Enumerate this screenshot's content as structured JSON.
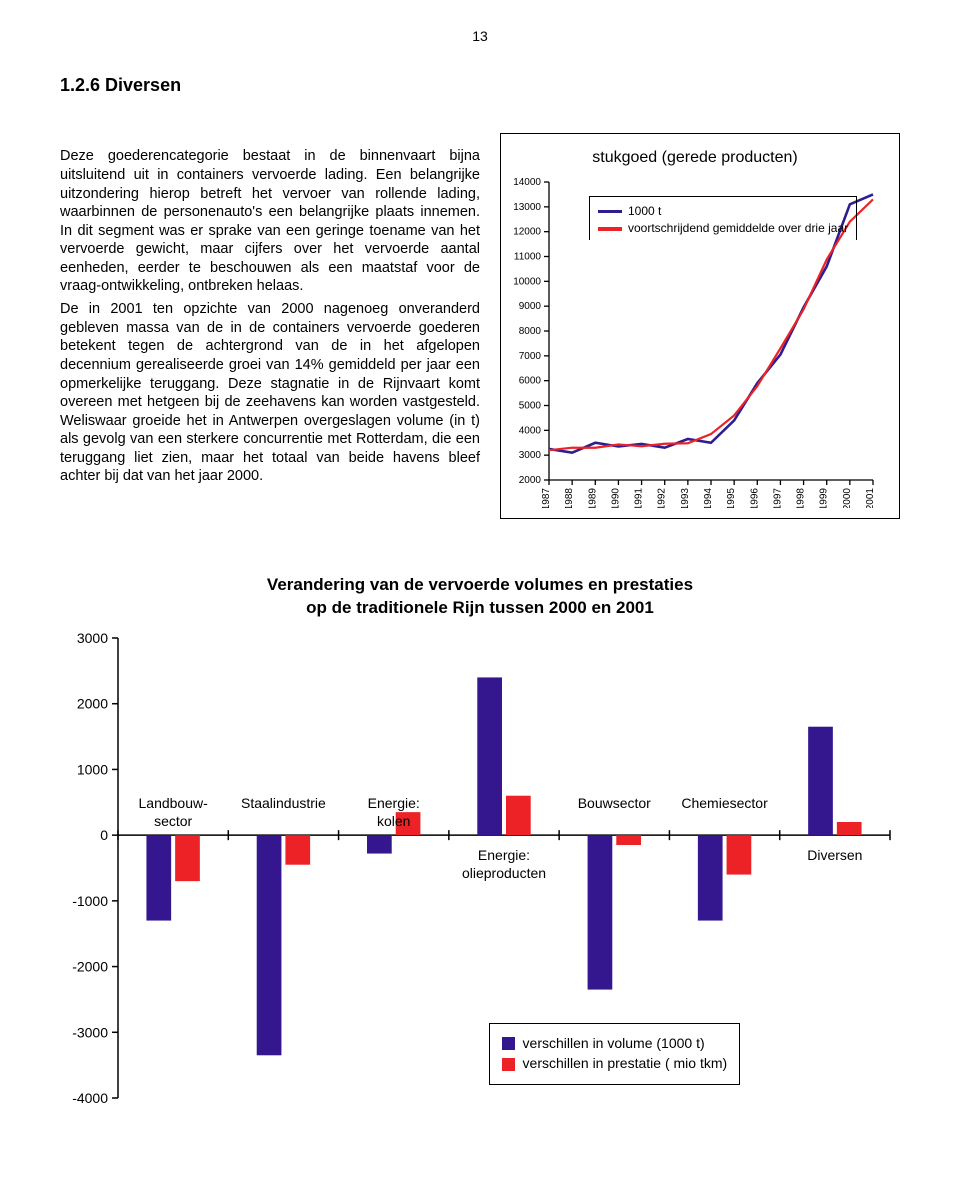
{
  "page_number": "13",
  "section_title": "1.2.6  Diversen",
  "body_para_1": "Deze goederencategorie bestaat in de binnenvaart bijna uitsluitend uit in containers vervoerde lading. Een belangrijke uitzondering hierop betreft het vervoer van rollende lading, waarbinnen de personenauto's een belangrijke plaats innemen. In dit segment was er sprake van een geringe toename van het vervoerde gewicht, maar cijfers over het vervoerde aantal eenheden, eerder te beschouwen als een maatstaf voor de vraag-ontwikkeling, ontbreken helaas.",
  "body_para_2": "De in 2001 ten opzichte van 2000 nagenoeg onveranderd gebleven massa van de in de containers vervoerde goederen betekent tegen de achtergrond van de in het afgelopen decennium gerealiseerde groei van 14% gemiddeld per jaar een opmerkelijke teruggang. Deze stagnatie in de Rijnvaart komt overeen met hetgeen bij de zeehavens kan worden vastgesteld. Weliswaar groeide het in Antwerpen overgeslagen volume (in t) als gevolg van een sterkere concurrentie met Rotterdam, die een teruggang liet zien, maar het totaal van beide havens bleef achter bij dat van het jaar 2000.",
  "linechart": {
    "title": "stukgoed (gerede producten)",
    "type": "line",
    "legend_series_a": "1000 t",
    "legend_series_b": "voortschrijdend gemiddelde over drie jaar",
    "series_a_color": "#2d1e8f",
    "series_b_color": "#ec2227",
    "background_color": "#ffffff",
    "axis_color": "#000000",
    "tick_color": "#000000",
    "y_ticks": [
      2000,
      3000,
      4000,
      5000,
      6000,
      7000,
      8000,
      9000,
      10000,
      11000,
      12000,
      13000,
      14000
    ],
    "x_years": [
      1987,
      1988,
      1989,
      1990,
      1991,
      1992,
      1993,
      1994,
      1995,
      1996,
      1997,
      1998,
      1999,
      2000,
      2001
    ],
    "ylim": [
      2000,
      14000
    ],
    "line_width_a": 2.6,
    "line_width_b": 2.2,
    "series_a_values": [
      3250,
      3100,
      3500,
      3350,
      3450,
      3300,
      3650,
      3500,
      4400,
      5900,
      7050,
      8950,
      10600,
      13100,
      13500
    ],
    "series_b_values": [
      3200,
      3300,
      3300,
      3430,
      3360,
      3460,
      3480,
      3850,
      4600,
      5780,
      7300,
      8870,
      10880,
      12400,
      13300
    ],
    "label_fontsize": 10,
    "y_label_fontsize": 10
  },
  "barchart": {
    "title_line1": "Verandering van de vervoerde volumes en prestaties",
    "title_line2": "op de traditionele Rijn tussen 2000 en 2001",
    "type": "grouped-bar",
    "volume_color": "#34168f",
    "prestatie_color": "#ec2227",
    "axis_color": "#000000",
    "background_color": "#ffffff",
    "ylim": [
      -4000,
      3000
    ],
    "y_ticks": [
      3000,
      2000,
      1000,
      0,
      -1000,
      -2000,
      -3000,
      -4000
    ],
    "bar_width": 0.32,
    "categories": [
      {
        "label": "Landbouw-\nsector",
        "label_pos": "top",
        "volume": -1300,
        "prestatie": -700
      },
      {
        "label": "Staalindustrie",
        "label_pos": "top",
        "volume": -3350,
        "prestatie": -450
      },
      {
        "label": "Energie:\nkolen",
        "label_pos": "top",
        "volume": -280,
        "prestatie": 350
      },
      {
        "label": "Energie:\nolieproducten",
        "label_pos": "bottom",
        "volume": 2400,
        "prestatie": 600
      },
      {
        "label": "Bouwsector",
        "label_pos": "top",
        "volume": -2350,
        "prestatie": -150
      },
      {
        "label": "Chemiesector",
        "label_pos": "top",
        "volume": -1300,
        "prestatie": -600
      },
      {
        "label": "Diversen",
        "label_pos": "bottom",
        "volume": 1650,
        "prestatie": 200
      }
    ],
    "legend_volume": "verschillen in volume (1000 t)",
    "legend_prestatie": "verschillen in prestatie ( mio tkm)",
    "y_label_fontsize": 14,
    "cat_label_fontsize": 14
  }
}
